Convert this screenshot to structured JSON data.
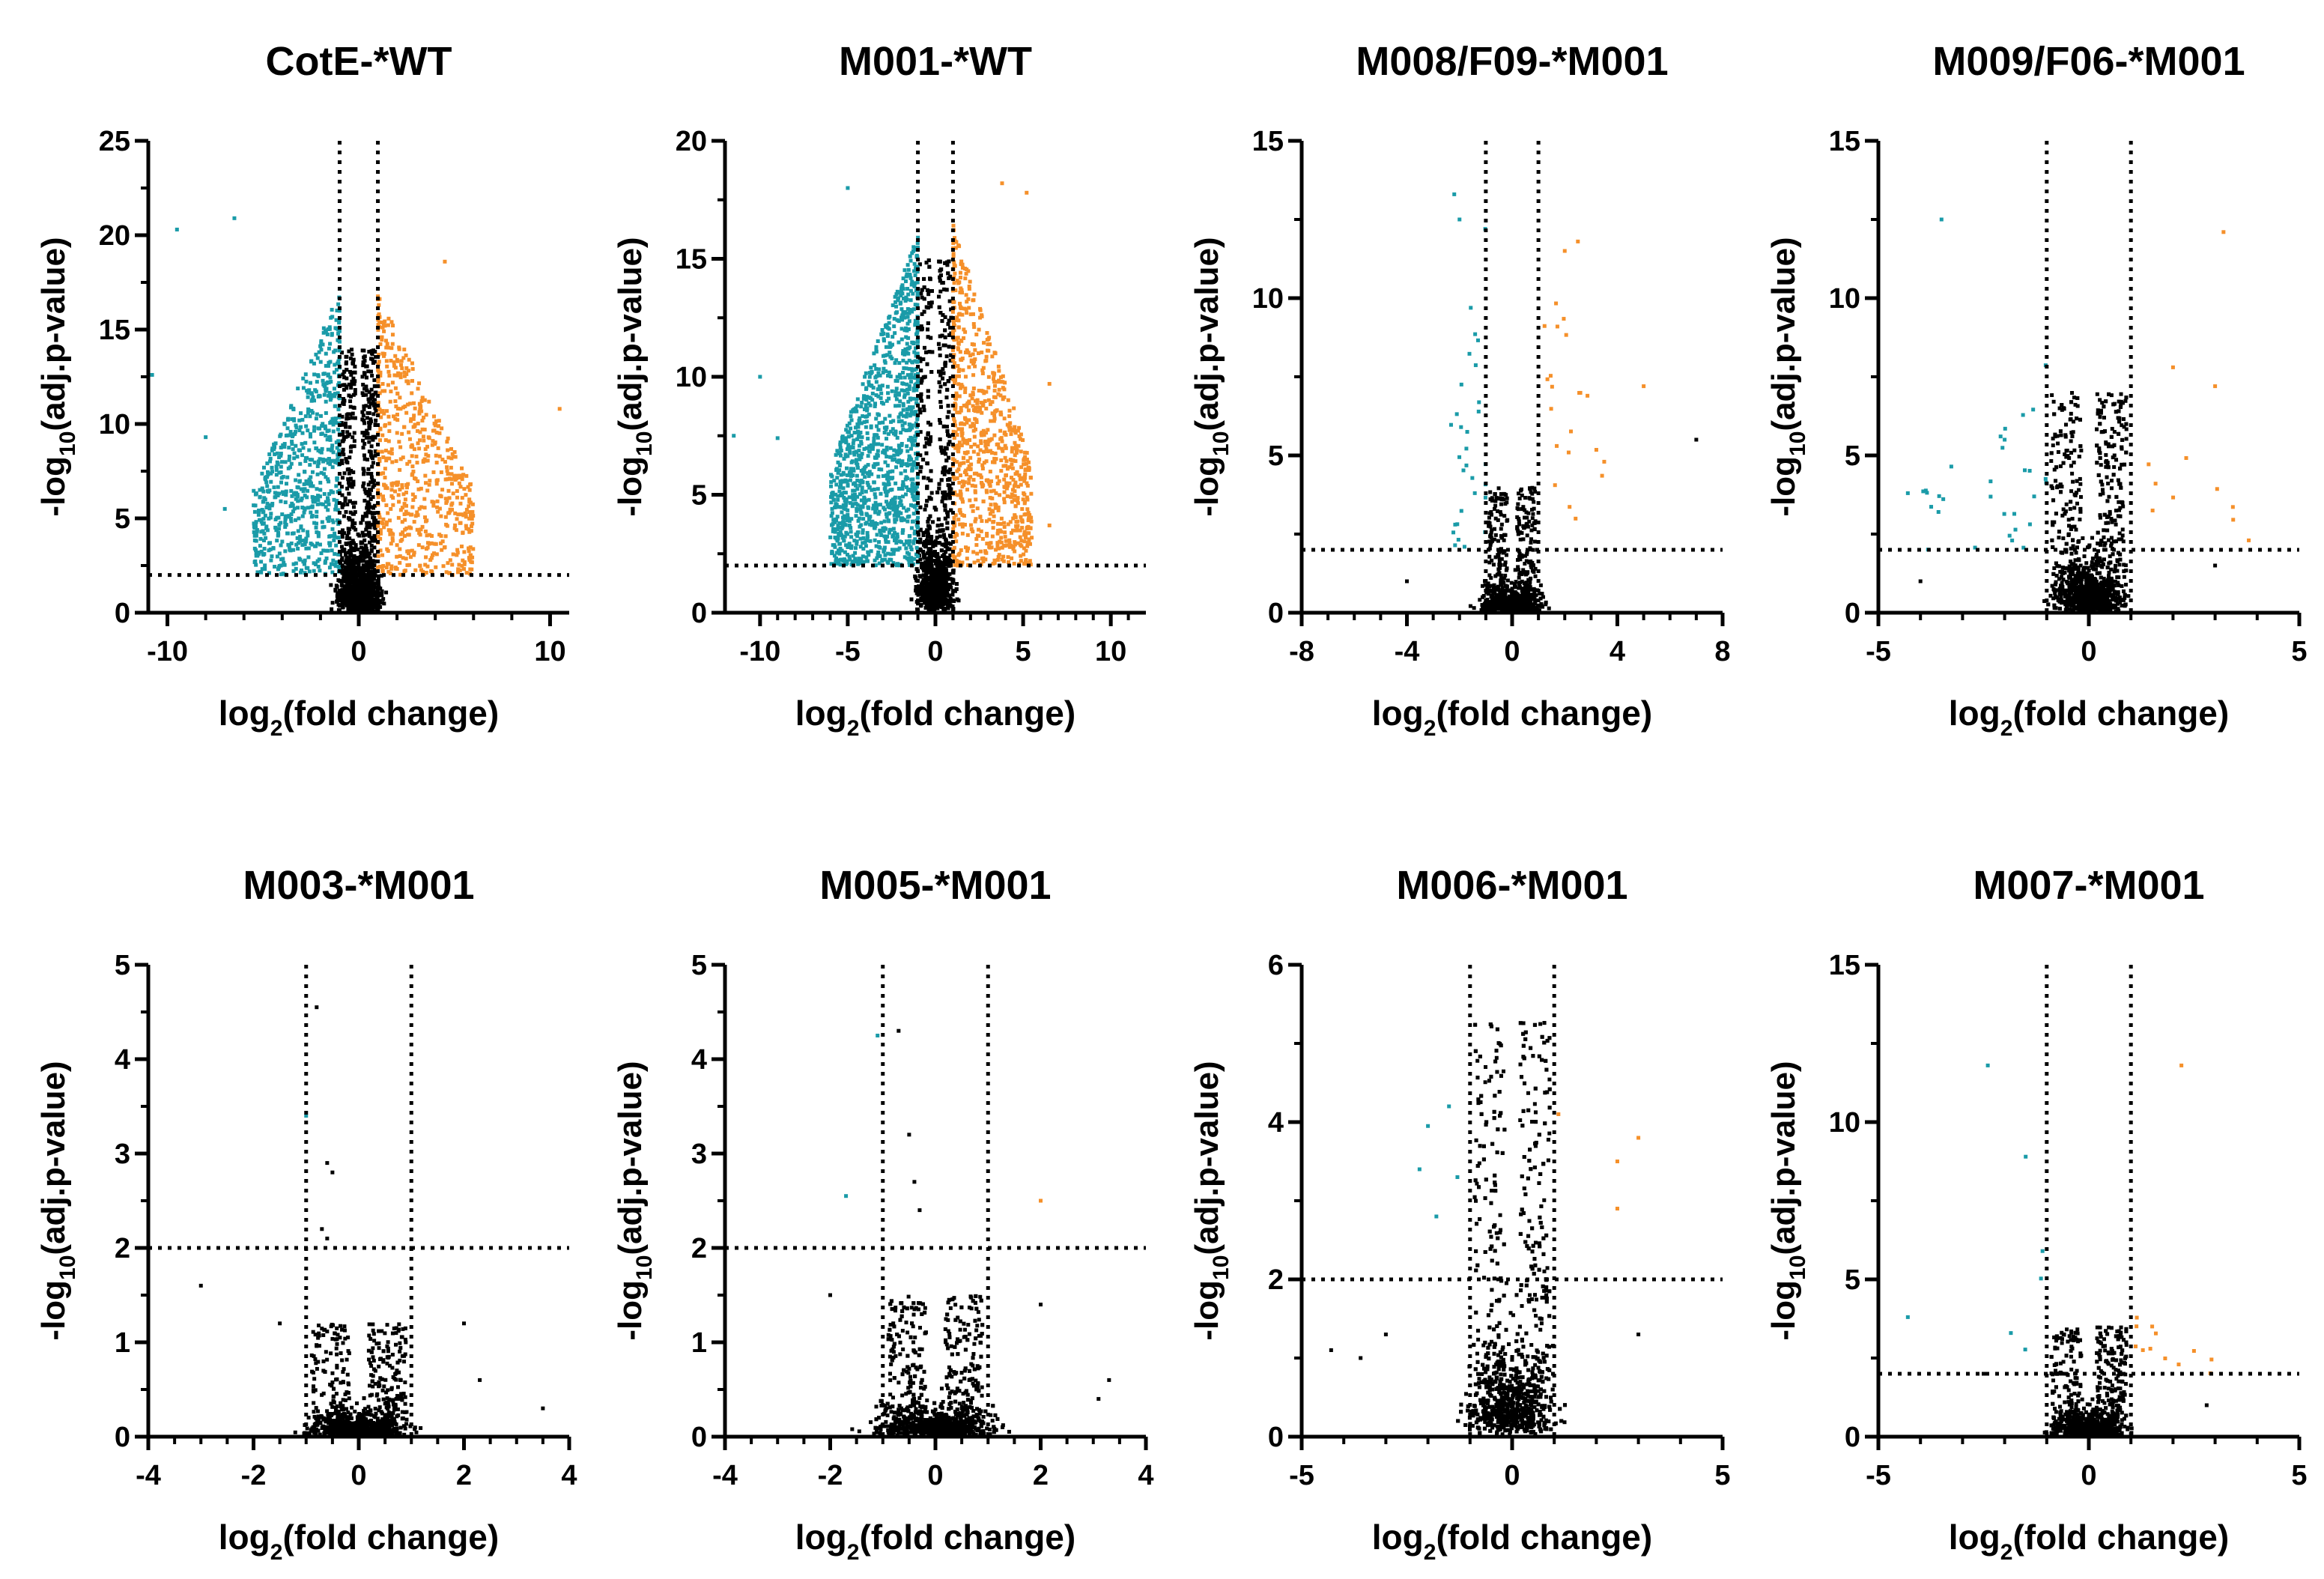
{
  "colors": {
    "down": "#1a9ba8",
    "up": "#f5902a",
    "ns": "#000000",
    "axis": "#000000"
  },
  "chart_data": [
    {
      "type": "scatter",
      "title": "CotE-*WT",
      "xlabel": {
        "pre": "log",
        "sub": "2",
        "post": "(fold change)"
      },
      "ylabel": {
        "pre": "-log",
        "sub": "10",
        "post": "(adj.p-value)"
      },
      "xlim": [
        -11,
        11
      ],
      "ylim": [
        0,
        25
      ],
      "xticks": [
        -10,
        0,
        10
      ],
      "yticks": [
        0,
        5,
        10,
        15,
        20,
        25
      ],
      "thresholds": {
        "fc": [
          -1,
          1
        ],
        "p": 2
      },
      "cloud": {
        "down": {
          "n": 700,
          "xmin": -5.5,
          "xmax": -1,
          "ymax": 17
        },
        "up": {
          "n": 600,
          "xmin": 1,
          "xmax": 6,
          "ymax": 17
        },
        "ns": {
          "n": 1400,
          "width": 1.7,
          "ymax": 14
        }
      },
      "outliers": {
        "down": [
          [
            -9.5,
            20.3
          ],
          [
            -6.5,
            20.9
          ],
          [
            -10.8,
            12.6
          ],
          [
            -8,
            9.3
          ],
          [
            -7,
            5.5
          ]
        ],
        "up": [
          [
            10.5,
            10.8
          ],
          [
            4.5,
            18.6
          ],
          [
            5.8,
            6.5
          ]
        ],
        "ns": [
          [
            0,
            2.5
          ]
        ]
      }
    },
    {
      "type": "scatter",
      "title": "M001-*WT",
      "xlabel": {
        "pre": "log",
        "sub": "2",
        "post": "(fold change)"
      },
      "ylabel": {
        "pre": "-log",
        "sub": "10",
        "post": "(adj.p-value)"
      },
      "xlim": [
        -12,
        12
      ],
      "ylim": [
        0,
        20
      ],
      "xticks": [
        -10,
        -5,
        0,
        5,
        10
      ],
      "yticks": [
        0,
        5,
        10,
        15,
        20
      ],
      "thresholds": {
        "fc": [
          -1,
          1
        ],
        "p": 2
      },
      "cloud": {
        "down": {
          "n": 1200,
          "xmin": -6,
          "xmax": -1,
          "ymax": 16
        },
        "up": {
          "n": 800,
          "xmin": 1,
          "xmax": 5.5,
          "ymax": 16.5
        },
        "ns": {
          "n": 1600,
          "width": 1.7,
          "ymax": 15
        }
      },
      "outliers": {
        "down": [
          [
            -11.5,
            7.5
          ],
          [
            -10,
            10
          ],
          [
            -9,
            7.4
          ],
          [
            -5,
            18
          ]
        ],
        "up": [
          [
            3.8,
            18.2
          ],
          [
            5.2,
            17.8
          ],
          [
            6.5,
            3.7
          ],
          [
            6.5,
            9.7
          ]
        ],
        "ns": []
      }
    },
    {
      "type": "scatter",
      "title": "M008/F09-*M001",
      "xlabel": {
        "pre": "log",
        "sub": "2",
        "post": "(fold change)"
      },
      "ylabel": {
        "pre": "-log",
        "sub": "10",
        "post": "(adj.p-value)"
      },
      "xlim": [
        -8,
        8
      ],
      "ylim": [
        0,
        15
      ],
      "xticks": [
        -8,
        -4,
        0,
        4,
        8
      ],
      "yticks": [
        0,
        5,
        10,
        15
      ],
      "thresholds": {
        "fc": [
          -1,
          1
        ],
        "p": 2
      },
      "cloud": {
        "down": {
          "n": 30,
          "xmin": -2.5,
          "xmax": -1,
          "ymax": 13
        },
        "up": {
          "n": 20,
          "xmin": 1.2,
          "xmax": 3.5,
          "ymax": 12
        },
        "ns": {
          "n": 800,
          "width": 1.8,
          "ymax": 4
        }
      },
      "outliers": {
        "down": [
          [
            -2.2,
            13.3
          ],
          [
            -2,
            12.5
          ]
        ],
        "up": [
          [
            2.5,
            11.8
          ],
          [
            5,
            7.2
          ],
          [
            2,
            11.5
          ],
          [
            3.5,
            4.8
          ]
        ],
        "ns": [
          [
            7,
            5.5
          ],
          [
            -4,
            1
          ]
        ]
      }
    },
    {
      "type": "scatter",
      "title": "M009/F06-*M001",
      "xlabel": {
        "pre": "log",
        "sub": "2",
        "post": "(fold change)"
      },
      "ylabel": {
        "pre": "-log",
        "sub": "10",
        "post": "(adj.p-value)"
      },
      "xlim": [
        -5,
        5
      ],
      "ylim": [
        0,
        15
      ],
      "xticks": [
        -5,
        0,
        5
      ],
      "yticks": [
        0,
        5,
        10,
        15
      ],
      "thresholds": {
        "fc": [
          -1,
          1
        ],
        "p": 2
      },
      "cloud": {
        "down": {
          "n": 30,
          "xmin": -4,
          "xmax": -1,
          "ymax": 8.5
        },
        "up": {
          "n": 8,
          "xmin": 1.1,
          "xmax": 3.5,
          "ymax": 7
        },
        "ns": {
          "n": 1500,
          "width": 1.2,
          "ymax": 7
        }
      },
      "outliers": {
        "down": [
          [
            -3.5,
            12.5
          ],
          [
            -4.3,
            3.8
          ],
          [
            -2,
            5.5
          ]
        ],
        "up": [
          [
            3.2,
            12.1
          ],
          [
            3,
            7.2
          ],
          [
            3.8,
            2.3
          ],
          [
            2,
            7.8
          ]
        ],
        "ns": [
          [
            -4,
            1
          ],
          [
            3,
            1.5
          ]
        ]
      }
    },
    {
      "type": "scatter",
      "title": "M003-*M001",
      "xlabel": {
        "pre": "log",
        "sub": "2",
        "post": "(fold change)"
      },
      "ylabel": {
        "pre": "-log",
        "sub": "10",
        "post": "(adj.p-value)"
      },
      "xlim": [
        -4,
        4
      ],
      "ylim": [
        0,
        5
      ],
      "xticks": [
        -4,
        -2,
        0,
        2,
        4
      ],
      "yticks": [
        0,
        1,
        2,
        3,
        4,
        5
      ],
      "thresholds": {
        "fc": [
          -1,
          1
        ],
        "p": 2
      },
      "cloud": {
        "down": {
          "n": 0,
          "xmin": -2,
          "xmax": -1,
          "ymax": 3
        },
        "up": {
          "n": 0,
          "xmin": 1,
          "xmax": 2,
          "ymax": 3
        },
        "ns": {
          "n": 900,
          "width": 1.5,
          "ymax": 1.2
        }
      },
      "outliers": {
        "down": [
          [
            -1,
            3.4
          ]
        ],
        "up": [],
        "ns": [
          [
            -0.8,
            4.55
          ],
          [
            -0.6,
            2.9
          ],
          [
            -0.5,
            2.8
          ],
          [
            -0.7,
            2.2
          ],
          [
            -0.6,
            2.1
          ],
          [
            -3,
            1.6
          ],
          [
            -1.5,
            1.2
          ],
          [
            2,
            1.2
          ],
          [
            2.3,
            0.6
          ],
          [
            3.5,
            0.3
          ],
          [
            1,
            2
          ]
        ]
      }
    },
    {
      "type": "scatter",
      "title": "M005-*M001",
      "xlabel": {
        "pre": "log",
        "sub": "2",
        "post": "(fold change)"
      },
      "ylabel": {
        "pre": "-log",
        "sub": "10",
        "post": "(adj.p-value)"
      },
      "xlim": [
        -4,
        4
      ],
      "ylim": [
        0,
        5
      ],
      "xticks": [
        -4,
        -2,
        0,
        2,
        4
      ],
      "yticks": [
        0,
        1,
        2,
        3,
        4,
        5
      ],
      "thresholds": {
        "fc": [
          -1,
          1
        ],
        "p": 2
      },
      "cloud": {
        "down": {
          "n": 0,
          "xmin": -2,
          "xmax": -1,
          "ymax": 3
        },
        "up": {
          "n": 0,
          "xmin": 1,
          "xmax": 2,
          "ymax": 3
        },
        "ns": {
          "n": 1300,
          "width": 1.8,
          "ymax": 1.5
        }
      },
      "outliers": {
        "down": [
          [
            -4,
            3.8
          ],
          [
            -1.1,
            4.25
          ],
          [
            -1.7,
            2.55
          ]
        ],
        "up": [
          [
            2,
            2.5
          ]
        ],
        "ns": [
          [
            -0.7,
            4.3
          ],
          [
            -0.5,
            3.2
          ],
          [
            -0.4,
            2.7
          ],
          [
            -0.3,
            2.4
          ],
          [
            3.3,
            0.6
          ],
          [
            3.1,
            0.4
          ],
          [
            2,
            1.4
          ],
          [
            -2,
            1.5
          ]
        ]
      }
    },
    {
      "type": "scatter",
      "title": "M006-*M001",
      "xlabel": {
        "pre": "log",
        "sub": "2",
        "post": "(fold change)"
      },
      "ylabel": {
        "pre": "-log",
        "sub": "10",
        "post": "(adj.p-value)"
      },
      "xlim": [
        -5,
        5
      ],
      "ylim": [
        0,
        6
      ],
      "xticks": [
        -5,
        0,
        5
      ],
      "yticks": [
        0,
        2,
        4,
        6
      ],
      "thresholds": {
        "fc": [
          -1,
          1
        ],
        "p": 2
      },
      "cloud": {
        "down": {
          "n": 0,
          "xmin": -2,
          "xmax": -1,
          "ymax": 4
        },
        "up": {
          "n": 0,
          "xmin": 1,
          "xmax": 2,
          "ymax": 4
        },
        "ns": {
          "n": 1600,
          "width": 1.6,
          "ymax": 5.3
        }
      },
      "outliers": {
        "down": [
          [
            -2,
            3.95
          ],
          [
            -1.5,
            4.2
          ],
          [
            -2.2,
            3.4
          ],
          [
            -1.3,
            3.3
          ],
          [
            -1.8,
            2.8
          ]
        ],
        "up": [
          [
            3,
            3.8
          ],
          [
            2.5,
            3.5
          ],
          [
            2.5,
            2.9
          ],
          [
            1.1,
            4.1
          ]
        ],
        "ns": [
          [
            -4.3,
            1.1
          ],
          [
            -3.6,
            1
          ],
          [
            -3,
            1.3
          ],
          [
            3,
            1.3
          ]
        ]
      }
    },
    {
      "type": "scatter",
      "title": "M007-*M001",
      "xlabel": {
        "pre": "log",
        "sub": "2",
        "post": "(fold change)"
      },
      "ylabel": {
        "pre": "-log",
        "sub": "10",
        "post": "(adj.p-value)"
      },
      "xlim": [
        -5,
        5
      ],
      "ylim": [
        0,
        15
      ],
      "xticks": [
        -5,
        0,
        5
      ],
      "yticks": [
        0,
        5,
        10,
        15
      ],
      "thresholds": {
        "fc": [
          -1,
          1
        ],
        "p": 2
      },
      "cloud": {
        "down": {
          "n": 3,
          "xmin": -2,
          "xmax": -1,
          "ymax": 6
        },
        "up": {
          "n": 12,
          "xmin": 1.1,
          "xmax": 3.5,
          "ymax": 4
        },
        "ns": {
          "n": 1200,
          "width": 1.3,
          "ymax": 3.5
        }
      },
      "outliers": {
        "down": [
          [
            -2.4,
            11.8
          ],
          [
            -1.5,
            8.9
          ],
          [
            -4.3,
            3.8
          ],
          [
            -1.1,
            5.9
          ]
        ],
        "up": [
          [
            2.2,
            11.8
          ]
        ],
        "ns": [
          [
            -2.5,
            2
          ],
          [
            2.8,
            1
          ]
        ]
      }
    }
  ]
}
